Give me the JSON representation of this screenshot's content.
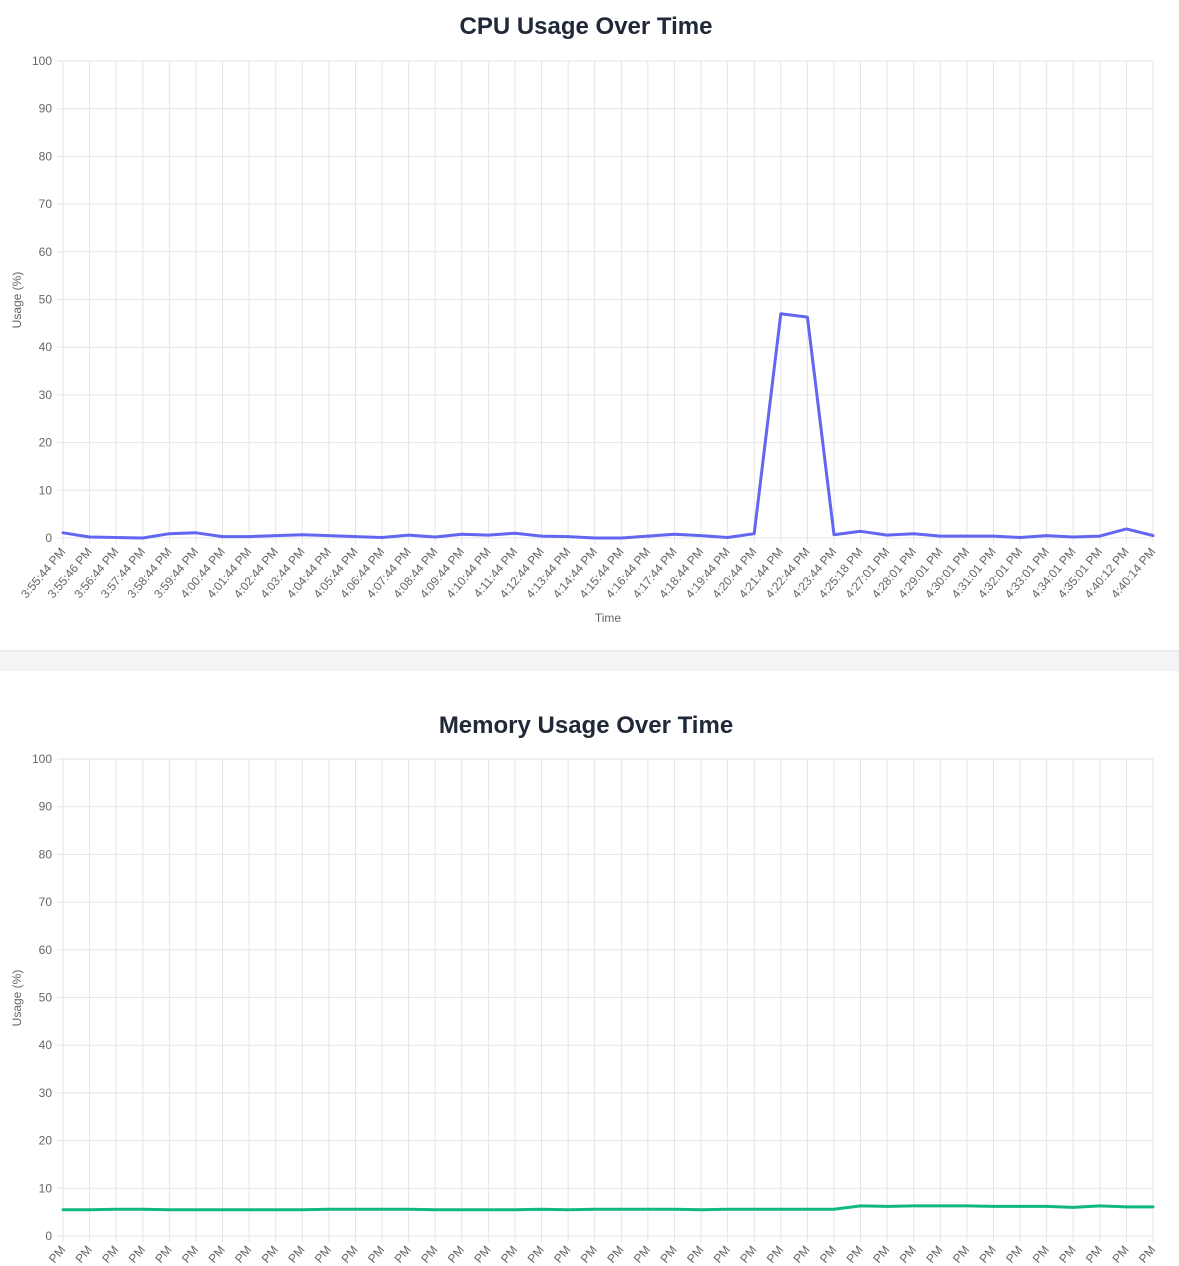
{
  "chart_data": [
    {
      "type": "line",
      "title": "CPU Usage Over Time",
      "xlabel": "Time",
      "ylabel": "Usage (%)",
      "ylim": [
        0,
        100
      ],
      "yticks": [
        0,
        10,
        20,
        30,
        40,
        50,
        60,
        70,
        80,
        90,
        100
      ],
      "grid": true,
      "categories": [
        "3:55:44 PM",
        "3:55:46 PM",
        "3:56:44 PM",
        "3:57:44 PM",
        "3:58:44 PM",
        "3:59:44 PM",
        "4:00:44 PM",
        "4:01:44 PM",
        "4:02:44 PM",
        "4:03:44 PM",
        "4:04:44 PM",
        "4:05:44 PM",
        "4:06:44 PM",
        "4:07:44 PM",
        "4:08:44 PM",
        "4:09:44 PM",
        "4:10:44 PM",
        "4:11:44 PM",
        "4:12:44 PM",
        "4:13:44 PM",
        "4:14:44 PM",
        "4:15:44 PM",
        "4:16:44 PM",
        "4:17:44 PM",
        "4:18:44 PM",
        "4:19:44 PM",
        "4:20:44 PM",
        "4:21:44 PM",
        "4:22:44 PM",
        "4:23:44 PM",
        "4:25:18 PM",
        "4:27:01 PM",
        "4:28:01 PM",
        "4:29:01 PM",
        "4:30:01 PM",
        "4:31:01 PM",
        "4:32:01 PM",
        "4:33:01 PM",
        "4:34:01 PM",
        "4:35:01 PM",
        "4:40:12 PM",
        "4:40:14 PM"
      ],
      "series": [
        {
          "color": "#6366f1",
          "values": [
            1.1,
            0.2,
            0.1,
            0.0,
            0.9,
            1.1,
            0.3,
            0.3,
            0.5,
            0.7,
            0.5,
            0.3,
            0.1,
            0.6,
            0.2,
            0.8,
            0.6,
            1.0,
            0.4,
            0.3,
            0.0,
            0.0,
            0.4,
            0.8,
            0.5,
            0.1,
            0.9,
            47.0,
            46.3,
            0.7,
            1.4,
            0.6,
            0.9,
            0.4,
            0.4,
            0.4,
            0.1,
            0.5,
            0.2,
            0.4,
            1.9,
            0.5
          ]
        }
      ]
    },
    {
      "type": "line",
      "title": "Memory Usage Over Time",
      "xlabel": "",
      "ylabel": "Usage (%)",
      "ylim": [
        0,
        100
      ],
      "yticks": [
        0,
        10,
        20,
        30,
        40,
        50,
        60,
        70,
        80,
        90,
        100
      ],
      "grid": true,
      "categories": [
        "PM",
        "PM",
        "PM",
        "PM",
        "PM",
        "PM",
        "PM",
        "PM",
        "PM",
        "PM",
        "PM",
        "PM",
        "PM",
        "PM",
        "PM",
        "PM",
        "PM",
        "PM",
        "PM",
        "PM",
        "PM",
        "PM",
        "PM",
        "PM",
        "PM",
        "PM",
        "PM",
        "PM",
        "PM",
        "PM",
        "PM",
        "PM",
        "PM",
        "PM",
        "PM",
        "PM",
        "PM",
        "PM",
        "PM",
        "PM",
        "PM",
        "PM"
      ],
      "series": [
        {
          "color": "#10b981",
          "values": [
            5.5,
            5.5,
            5.6,
            5.6,
            5.5,
            5.5,
            5.5,
            5.5,
            5.5,
            5.5,
            5.6,
            5.6,
            5.6,
            5.6,
            5.5,
            5.5,
            5.5,
            5.5,
            5.6,
            5.5,
            5.6,
            5.6,
            5.6,
            5.6,
            5.5,
            5.6,
            5.6,
            5.6,
            5.6,
            5.6,
            6.3,
            6.2,
            6.3,
            6.3,
            6.3,
            6.2,
            6.2,
            6.2,
            6.0,
            6.3,
            6.1,
            6.1
          ]
        }
      ]
    }
  ]
}
